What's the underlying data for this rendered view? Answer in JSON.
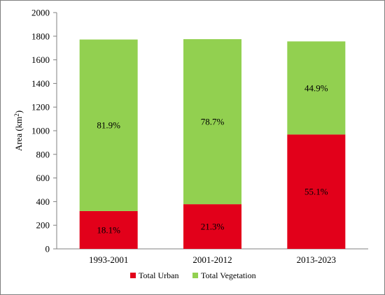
{
  "chart_data": {
    "type": "bar",
    "stacked": true,
    "categories": [
      "1993-2001",
      "2001-2012",
      "2013-2023"
    ],
    "series": [
      {
        "name": "Total Urban",
        "color": "#e2001a",
        "values": [
          320,
          378,
          968
        ],
        "labels": [
          "18.1%",
          "21.3%",
          "55.1%"
        ]
      },
      {
        "name": "Total Vegetation",
        "color": "#92d050",
        "values": [
          1452,
          1397,
          788
        ],
        "labels": [
          "81.9%",
          "78.7%",
          "44.9%"
        ]
      }
    ],
    "ylabel_base": "Area (km",
    "ylabel_sup": "2",
    "ylabel_tail": ")",
    "ylim": [
      0,
      2000
    ],
    "yticks": [
      "0",
      "200",
      "400",
      "600",
      "800",
      "1000",
      "1200",
      "1400",
      "1600",
      "1800",
      "2000"
    ],
    "legend_position": "bottom",
    "grid": false
  }
}
